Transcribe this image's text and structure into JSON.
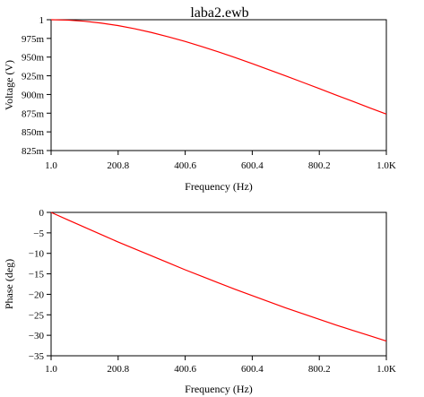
{
  "window": {
    "title": "laba2.ewb"
  },
  "chart_data": [
    {
      "type": "line",
      "title": "laba2.ewb",
      "xlabel": "Frequency (Hz)",
      "ylabel": "Voltage (V)",
      "x_ticks": [
        "1.0",
        "200.8",
        "400.6",
        "600.4",
        "800.2",
        "1.0K"
      ],
      "y_ticks": [
        "1",
        "975m",
        "950m",
        "925m",
        "900m",
        "875m",
        "850m",
        "825m"
      ],
      "xlim": [
        1.0,
        1000.0
      ],
      "ylim": [
        0.825,
        1.0
      ],
      "grid": false,
      "colors": {
        "line": "#ff0000",
        "axis": "#000000"
      },
      "series": [
        {
          "x": [
            1,
            50,
            100,
            150,
            200,
            250,
            300,
            350,
            400,
            450,
            500,
            550,
            600,
            650,
            700,
            750,
            800,
            850,
            900,
            950,
            1000
          ],
          "y": [
            1.0,
            0.9995,
            0.998,
            0.9955,
            0.9922,
            0.9879,
            0.9829,
            0.9772,
            0.971,
            0.9641,
            0.9569,
            0.9493,
            0.9413,
            0.9331,
            0.9248,
            0.9164,
            0.9079,
            0.8993,
            0.8908,
            0.8822,
            0.8738
          ]
        }
      ]
    },
    {
      "type": "line",
      "xlabel": "Frequency (Hz)",
      "ylabel": "Phase (deg)",
      "x_ticks": [
        "1.0",
        "200.8",
        "400.6",
        "600.4",
        "800.2",
        "1.0K"
      ],
      "y_ticks": [
        "0",
        "−5",
        "−10",
        "−15",
        "−20",
        "−25",
        "−30",
        "−35"
      ],
      "xlim": [
        1.0,
        1000.0
      ],
      "ylim": [
        -35,
        0
      ],
      "grid": false,
      "colors": {
        "line": "#ff0000",
        "axis": "#000000"
      },
      "series": [
        {
          "x": [
            1,
            50,
            100,
            150,
            200,
            250,
            300,
            350,
            400,
            450,
            500,
            550,
            600,
            650,
            700,
            750,
            800,
            850,
            900,
            950,
            1000
          ],
          "y": [
            0,
            -1.8,
            -3.6,
            -5.4,
            -7.2,
            -8.9,
            -10.6,
            -12.3,
            -14.0,
            -15.6,
            -17.2,
            -18.8,
            -20.3,
            -21.8,
            -23.3,
            -24.7,
            -26.1,
            -27.5,
            -28.8,
            -30.1,
            -31.4
          ]
        }
      ]
    }
  ]
}
